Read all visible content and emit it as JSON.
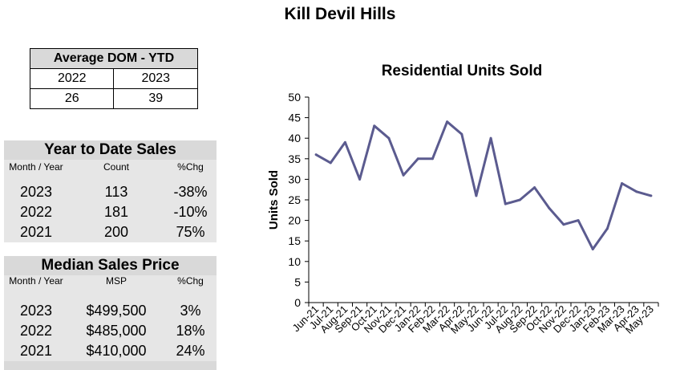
{
  "page_title": "Kill Devil Hills",
  "dom": {
    "header": "Average DOM - YTD",
    "years": [
      "2022",
      "2023"
    ],
    "values": [
      "26",
      "39"
    ]
  },
  "ytd": {
    "title": "Year to Date Sales",
    "columns": [
      "Month / Year",
      "Count",
      "%Chg"
    ],
    "rows": [
      {
        "year": "2023",
        "value": "113",
        "chg": "-38%"
      },
      {
        "year": "2022",
        "value": "181",
        "chg": "-10%"
      },
      {
        "year": "2021",
        "value": "200",
        "chg": "75%"
      }
    ]
  },
  "msp": {
    "title": "Median Sales Price",
    "columns": [
      "Month / Year",
      "MSP",
      "%Chg"
    ],
    "rows": [
      {
        "year": "2023",
        "value": "$499,500",
        "chg": "3%"
      },
      {
        "year": "2022",
        "value": "$485,000",
        "chg": "18%"
      },
      {
        "year": "2021",
        "value": "$410,000",
        "chg": "24%"
      }
    ]
  },
  "chart_data": {
    "type": "line",
    "title": "Residential Units Sold",
    "xlabel": "",
    "ylabel": "Units Sold",
    "ylim": [
      0,
      50
    ],
    "yticks": [
      0,
      5,
      10,
      15,
      20,
      25,
      30,
      35,
      40,
      45,
      50
    ],
    "categories": [
      "Jun-21",
      "Jul-21",
      "Aug-21",
      "Sep-21",
      "Oct-21",
      "Nov-21",
      "Dec-21",
      "Jan-22",
      "Feb-22",
      "Mar-22",
      "Apr-22",
      "May-22",
      "Jun-22",
      "Jul-22",
      "Aug-22",
      "Sep-22",
      "Oct-22",
      "Nov-22",
      "Dec-22",
      "Jan-23",
      "Feb-23",
      "Mar-23",
      "Apr-23",
      "May-23"
    ],
    "series": [
      {
        "values": [
          36,
          34,
          39,
          30,
          43,
          40,
          31,
          35,
          35,
          44,
          41,
          26,
          40,
          24,
          25,
          28,
          23,
          19,
          20,
          13,
          18,
          29,
          27,
          26
        ]
      }
    ],
    "line_color": "#5b5b8f",
    "grid": false,
    "legend": "none"
  }
}
